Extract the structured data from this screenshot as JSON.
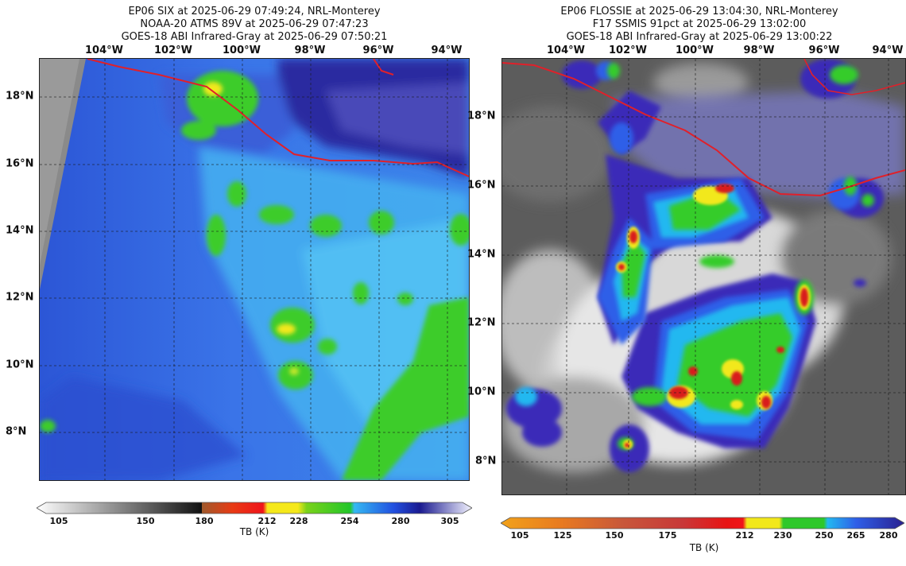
{
  "left": {
    "title_lines": [
      "EP06 SIX at 2025-06-29 07:49:24, NRL-Monterey",
      "NOAA-20 ATMS 89V at 2025-06-29 07:47:23",
      "GOES-18 ABI Infrared-Gray at 2025-06-29 07:50:21"
    ],
    "lon_labels": [
      "104°W",
      "102°W",
      "100°W",
      "98°W",
      "96°W",
      "94°W"
    ],
    "lat_labels": [
      "18°N",
      "16°N",
      "14°N",
      "12°N",
      "10°N",
      "8°N"
    ],
    "colorbar": {
      "ticks": [
        "105",
        "150",
        "180",
        "212",
        "228",
        "254",
        "280",
        "305"
      ],
      "title": "TB (K)"
    }
  },
  "right": {
    "title_lines": [
      "EP06 FLOSSIE at 2025-06-29 13:04:30, NRL-Monterey",
      "F17 SSMIS 91pct at 2025-06-29 13:02:00",
      "GOES-18 ABI Infrared-Gray at 2025-06-29 13:00:22"
    ],
    "lon_labels": [
      "104°W",
      "102°W",
      "100°W",
      "98°W",
      "96°W",
      "94°W"
    ],
    "lat_labels": [
      "18°N",
      "16°N",
      "14°N",
      "12°N",
      "10°N",
      "8°N"
    ],
    "colorbar": {
      "ticks": [
        "105",
        "125",
        "150",
        "175",
        "212",
        "230",
        "250",
        "265",
        "280"
      ],
      "title": "TB (K)"
    }
  },
  "colors": {
    "coast": "#e0202a",
    "grid": "#1a1a1a",
    "deep_blue": "#2b3fd8",
    "cyan": "#22a6f0",
    "green": "#3dcc2c",
    "yellow": "#f2e81a",
    "red": "#d81a1a"
  }
}
